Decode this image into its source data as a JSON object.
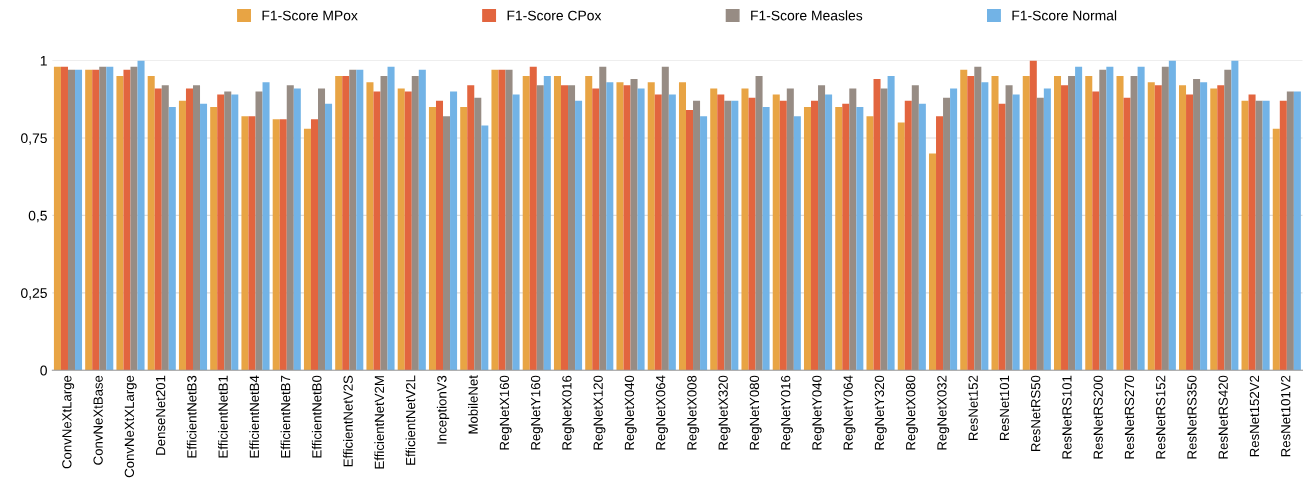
{
  "chart_data": {
    "type": "bar",
    "categories": [
      "ConvNeXtLarge",
      "ConvNeXtBase",
      "ConvNeXtXLarge",
      "DenseNet201",
      "EfficientNetB3",
      "EfficientNetB1",
      "EfficientNetB4",
      "EfficientNetB7",
      "EfficientNetB0",
      "EfficientNetV2S",
      "EfficientNetV2M",
      "EfficientNetV2L",
      "InceptionV3",
      "MobileNet",
      "RegNetX160",
      "RegNetY160",
      "RegNetX016",
      "RegNetX120",
      "RegNetX040",
      "RegNetX064",
      "RegNetX008",
      "RegNetX320",
      "RegNetY080",
      "RegNetY016",
      "RegNetY040",
      "RegNetY064",
      "RegNetY320",
      "RegNetX080",
      "RegNetX032",
      "ResNet152",
      "ResNet101",
      "ResNetRS50",
      "ResNetRS101",
      "ResNetRS200",
      "ResNetRS270",
      "ResNetRS152",
      "ResNetRS350",
      "ResNetRS420",
      "ResNet152V2",
      "ResNet101V2"
    ],
    "series": [
      {
        "name": "F1-Score MPox",
        "color": "#e8a444",
        "values": [
          0.98,
          0.97,
          0.95,
          0.95,
          0.87,
          0.85,
          0.82,
          0.81,
          0.78,
          0.95,
          0.93,
          0.91,
          0.85,
          0.85,
          0.97,
          0.95,
          0.95,
          0.95,
          0.93,
          0.93,
          0.93,
          0.91,
          0.91,
          0.89,
          0.85,
          0.85,
          0.82,
          0.8,
          0.7,
          0.97,
          0.95,
          0.95,
          0.95,
          0.95,
          0.95,
          0.93,
          0.92,
          0.91,
          0.87,
          0.78
        ]
      },
      {
        "name": "F1-Score CPox",
        "color": "#e2653f",
        "values": [
          0.98,
          0.97,
          0.97,
          0.91,
          0.91,
          0.89,
          0.82,
          0.81,
          0.81,
          0.95,
          0.9,
          0.9,
          0.87,
          0.92,
          0.97,
          0.98,
          0.92,
          0.91,
          0.92,
          0.89,
          0.84,
          0.89,
          0.88,
          0.87,
          0.87,
          0.86,
          0.94,
          0.87,
          0.82,
          0.95,
          0.86,
          1.0,
          0.92,
          0.9,
          0.88,
          0.92,
          0.89,
          0.92,
          0.89,
          0.87
        ]
      },
      {
        "name": "F1-Score Measles",
        "color": "#978c84",
        "values": [
          0.97,
          0.98,
          0.98,
          0.92,
          0.92,
          0.9,
          0.9,
          0.92,
          0.91,
          0.97,
          0.95,
          0.95,
          0.82,
          0.88,
          0.97,
          0.92,
          0.92,
          0.98,
          0.94,
          0.98,
          0.87,
          0.87,
          0.95,
          0.91,
          0.92,
          0.91,
          0.91,
          0.92,
          0.88,
          0.98,
          0.92,
          0.88,
          0.95,
          0.97,
          0.95,
          0.98,
          0.94,
          0.97,
          0.87,
          0.9
        ]
      },
      {
        "name": "F1-Score Normal",
        "color": "#72b3e6",
        "values": [
          0.97,
          0.98,
          1.0,
          0.85,
          0.86,
          0.89,
          0.93,
          0.91,
          0.86,
          0.97,
          0.98,
          0.97,
          0.9,
          0.79,
          0.89,
          0.95,
          0.87,
          0.93,
          0.91,
          0.89,
          0.82,
          0.87,
          0.85,
          0.82,
          0.89,
          0.85,
          0.95,
          0.86,
          0.91,
          0.93,
          0.89,
          0.91,
          0.98,
          0.98,
          0.98,
          1.0,
          0.93,
          1.0,
          0.87,
          0.9
        ]
      }
    ],
    "ylim": [
      0,
      1
    ],
    "yticks": [
      0,
      {
        "value": 0.25,
        "label": "0,25"
      },
      {
        "value": 0.5,
        "label": "0,5"
      },
      {
        "value": 0.75,
        "label": "0,75"
      },
      1
    ],
    "grid": "y",
    "legend": "top"
  }
}
